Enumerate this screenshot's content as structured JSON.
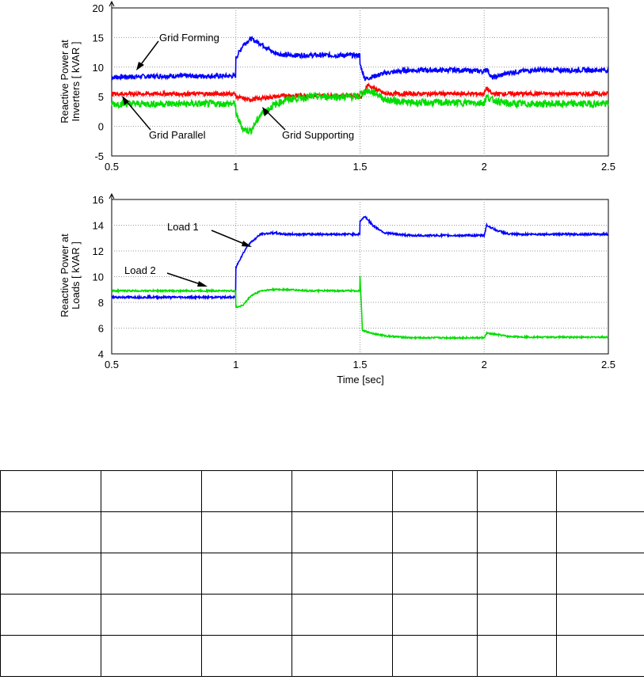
{
  "chart_data": [
    {
      "type": "line",
      "ylabel_lines": [
        "Reactive Power at",
        "Inverters [ kVAR ]"
      ],
      "xlabel": "",
      "xlim": [
        0.5,
        2.5
      ],
      "ylim": [
        -5,
        20
      ],
      "x_ticks": [
        "0.5",
        "1",
        "1.5",
        "2",
        "2.5"
      ],
      "y_ticks": [
        "-5",
        "0",
        "5",
        "10",
        "15",
        "20"
      ],
      "grid": true,
      "series": [
        {
          "name": "Grid Forming",
          "color": "#0000ff",
          "x": [
            0.5,
            0.7,
            0.9,
            0.999,
            1.0,
            1.03,
            1.06,
            1.1,
            1.15,
            1.2,
            1.3,
            1.4,
            1.499,
            1.5,
            1.52,
            1.56,
            1.6,
            1.7,
            1.8,
            1.9,
            2.0,
            2.01,
            2.03,
            2.06,
            2.1,
            2.2,
            2.3,
            2.4,
            2.5
          ],
          "values": [
            8.3,
            8.5,
            8.5,
            8.5,
            11.5,
            13.8,
            14.8,
            14.0,
            12.5,
            12.0,
            12.0,
            12.0,
            12.0,
            10.5,
            8.0,
            8.5,
            9.0,
            9.5,
            9.5,
            9.5,
            9.3,
            9.8,
            8.2,
            8.5,
            9.1,
            9.5,
            9.5,
            9.5,
            9.5
          ]
        },
        {
          "name": "Grid Parallel",
          "color": "#ff0000",
          "x": [
            0.5,
            0.8,
            0.999,
            1.0,
            1.05,
            1.2,
            1.499,
            1.5,
            1.53,
            1.6,
            1.8,
            2.0,
            2.01,
            2.03,
            2.2,
            2.5
          ],
          "values": [
            5.5,
            5.5,
            5.5,
            5.0,
            4.5,
            5.2,
            5.2,
            4.5,
            7.0,
            5.5,
            5.5,
            5.5,
            6.5,
            5.5,
            5.5,
            5.5
          ]
        },
        {
          "name": "Grid Supporting",
          "color": "#00dd00",
          "x": [
            0.5,
            0.8,
            0.999,
            1.0,
            1.03,
            1.06,
            1.1,
            1.15,
            1.2,
            1.3,
            1.499,
            1.5,
            1.53,
            1.57,
            1.6,
            1.7,
            1.8,
            2.0,
            2.01,
            2.03,
            2.1,
            2.2,
            2.5
          ],
          "values": [
            3.8,
            3.8,
            3.8,
            2.0,
            -0.5,
            -0.8,
            2.0,
            3.5,
            4.5,
            5.0,
            5.0,
            5.5,
            6.0,
            5.5,
            4.5,
            4.0,
            4.0,
            4.0,
            5.0,
            4.5,
            3.8,
            3.8,
            3.8
          ]
        }
      ],
      "annotations": [
        {
          "text": "Grid Forming",
          "series": "Grid Forming"
        },
        {
          "text": "Grid Parallel",
          "series": "Grid Parallel"
        },
        {
          "text": "Grid Supporting",
          "series": "Grid Supporting"
        }
      ]
    },
    {
      "type": "line",
      "ylabel_lines": [
        "Reactive Power at",
        "Loads [ kVAR ]"
      ],
      "xlabel": "Time [sec]",
      "xlim": [
        0.5,
        2.5
      ],
      "ylim": [
        4,
        16
      ],
      "x_ticks": [
        "0.5",
        "1",
        "1.5",
        "2",
        "2.5"
      ],
      "y_ticks": [
        "4",
        "6",
        "8",
        "10",
        "12",
        "14",
        "16"
      ],
      "grid": true,
      "series": [
        {
          "name": "Load 1",
          "color": "#0000ff",
          "x": [
            0.5,
            0.8,
            0.999,
            1.0,
            1.02,
            1.05,
            1.1,
            1.15,
            1.2,
            1.3,
            1.499,
            1.5,
            1.52,
            1.55,
            1.6,
            1.7,
            1.8,
            2.0,
            2.01,
            2.05,
            2.1,
            2.2,
            2.5
          ],
          "values": [
            8.4,
            8.4,
            8.4,
            10.7,
            11.5,
            12.5,
            13.3,
            13.4,
            13.3,
            13.3,
            13.3,
            14.3,
            14.7,
            14.0,
            13.4,
            13.2,
            13.2,
            13.2,
            14.0,
            13.6,
            13.3,
            13.3,
            13.3
          ]
        },
        {
          "name": "Load 2",
          "color": "#00dd00",
          "x": [
            0.5,
            0.8,
            0.999,
            1.0,
            1.03,
            1.06,
            1.1,
            1.15,
            1.2,
            1.3,
            1.499,
            1.5,
            1.51,
            1.55,
            1.6,
            1.7,
            1.8,
            2.0,
            2.01,
            2.05,
            2.1,
            2.2,
            2.5
          ],
          "values": [
            8.9,
            8.9,
            8.9,
            7.6,
            7.8,
            8.5,
            8.9,
            9.0,
            9.0,
            8.9,
            8.9,
            10.0,
            5.8,
            5.6,
            5.4,
            5.25,
            5.25,
            5.25,
            5.6,
            5.5,
            5.35,
            5.3,
            5.3
          ]
        }
      ],
      "annotations": [
        {
          "text": "Load 1",
          "series": "Load 1"
        },
        {
          "text": "Load 2",
          "series": "Load 2"
        }
      ]
    }
  ],
  "table": {
    "rows": 5,
    "columns": 7,
    "cells": []
  }
}
